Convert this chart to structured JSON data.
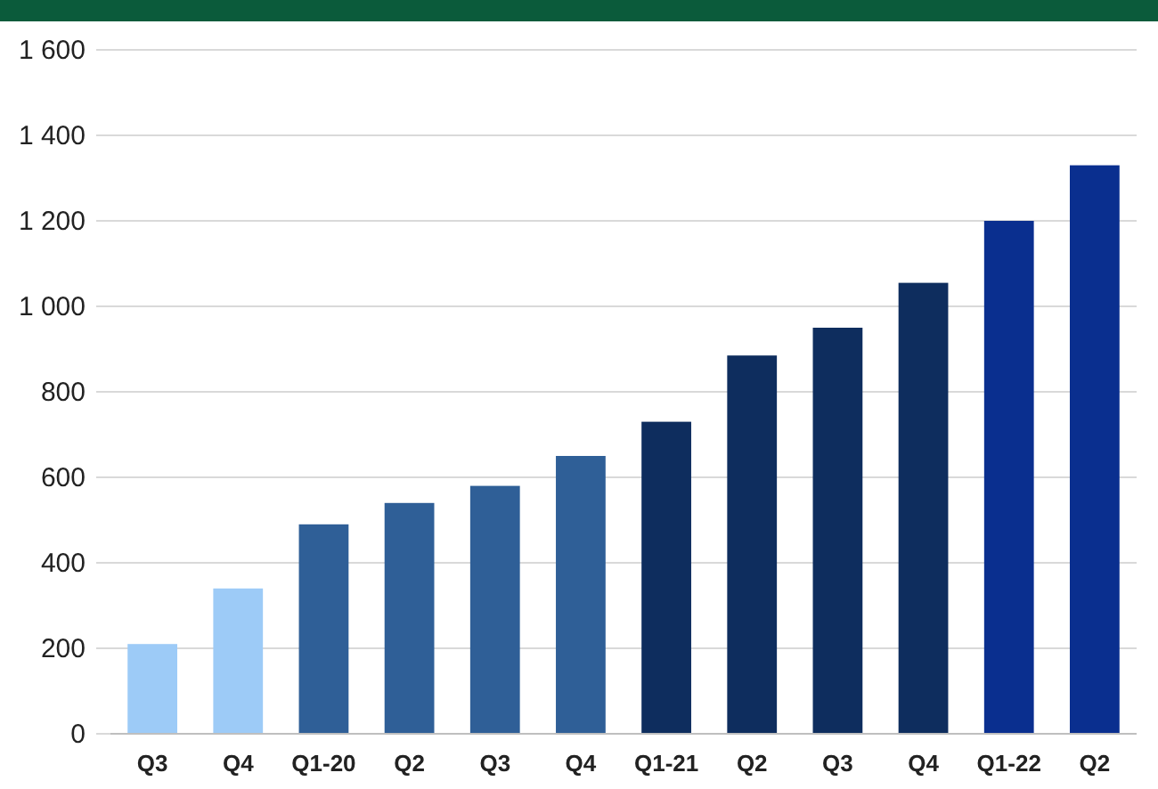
{
  "chart_data": {
    "type": "bar",
    "categories": [
      "Q3",
      "Q4",
      "Q1-20",
      "Q2",
      "Q3",
      "Q4",
      "Q1-21",
      "Q2",
      "Q3",
      "Q4",
      "Q1-22",
      "Q2"
    ],
    "values": [
      210,
      340,
      490,
      540,
      580,
      650,
      730,
      885,
      950,
      1055,
      1200,
      1330
    ],
    "colors": [
      "#9dcbf7",
      "#9dcbf7",
      "#2f5f97",
      "#2f5f97",
      "#2f5f97",
      "#2f5f97",
      "#0e2d5e",
      "#0e2d5e",
      "#0e2d5e",
      "#0e2d5e",
      "#0a2f8f",
      "#0a2f8f"
    ],
    "ylim": [
      0,
      1600
    ],
    "yticks": [
      0,
      200,
      400,
      600,
      800,
      {
        "value": 1000,
        "label": "1 000"
      },
      {
        "value": 1200,
        "label": "1 200"
      },
      {
        "value": 1400,
        "label": "1 400"
      },
      {
        "value": 1600,
        "label": "1 600"
      }
    ],
    "grid": "y"
  }
}
